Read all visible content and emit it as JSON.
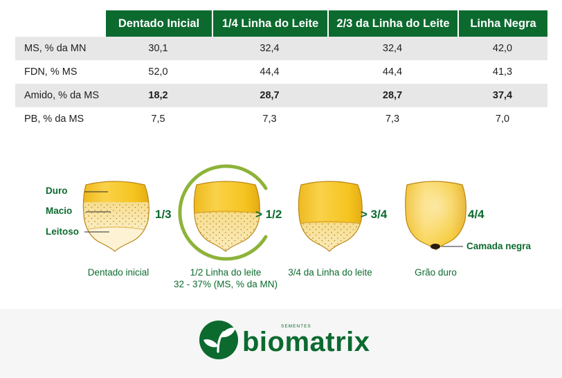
{
  "table": {
    "headers": [
      "Dentado Inicial",
      "1/4 Linha do Leite",
      "2/3 da Linha do Leite",
      "Linha Negra"
    ],
    "rows": [
      {
        "label": "MS, % da MN",
        "values": [
          "30,1",
          "32,4",
          "32,4",
          "42,0"
        ],
        "bold": false
      },
      {
        "label": "FDN, % MS",
        "values": [
          "52,0",
          "44,4",
          "44,4",
          "41,3"
        ],
        "bold": false
      },
      {
        "label": "Amido, % da MS",
        "values": [
          "18,2",
          "28,7",
          "28,7",
          "37,4"
        ],
        "bold": true
      },
      {
        "label": "PB, % da MS",
        "values": [
          "7,5",
          "7,3",
          "7,3",
          "7,0"
        ],
        "bold": false
      }
    ]
  },
  "diagram": {
    "layer_labels": [
      "Duro",
      "Macio",
      "Leitoso"
    ],
    "fractions": [
      "1/3",
      "> 1/2",
      "> 3/4",
      "4/4"
    ],
    "black_layer_label": "Camada negra",
    "captions": [
      "Dentado inicial",
      "1/2 Linha do leite",
      "3/4 da Linha do leite",
      "Grão duro"
    ],
    "highlight_note": "32 - 37% (MS, % da MN)"
  },
  "logo": {
    "brand": "biomatrix",
    "tagline": "SEMENTES"
  },
  "colors": {
    "brand_green": "#0c6a2f",
    "accent_lime": "#8db33a",
    "row_shade": "#e7e7e7",
    "kernel_yellow": "#f2c21c",
    "milk_cream": "#fbefc6"
  }
}
